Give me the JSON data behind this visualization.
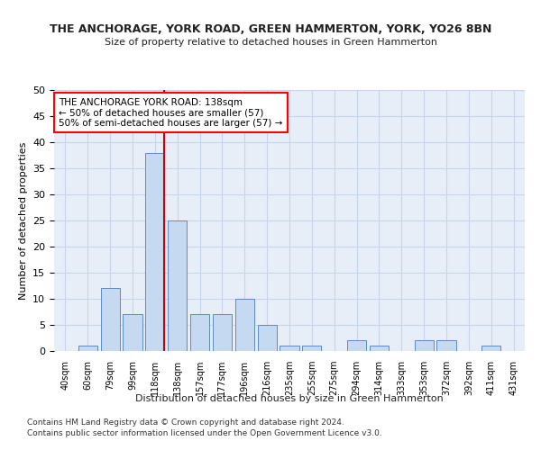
{
  "title": "THE ANCHORAGE, YORK ROAD, GREEN HAMMERTON, YORK, YO26 8BN",
  "subtitle": "Size of property relative to detached houses in Green Hammerton",
  "xlabel": "Distribution of detached houses by size in Green Hammerton",
  "ylabel": "Number of detached properties",
  "footnote1": "Contains HM Land Registry data © Crown copyright and database right 2024.",
  "footnote2": "Contains public sector information licensed under the Open Government Licence v3.0.",
  "annotation_line1": "THE ANCHORAGE YORK ROAD: 138sqm",
  "annotation_line2": "← 50% of detached houses are smaller (57)",
  "annotation_line3": "50% of semi-detached houses are larger (57) →",
  "bar_color": "#c5d9f1",
  "bar_edge_color": "#5b8bc9",
  "ref_line_color": "#cc0000",
  "categories": [
    "40sqm",
    "60sqm",
    "79sqm",
    "99sqm",
    "118sqm",
    "138sqm",
    "157sqm",
    "177sqm",
    "196sqm",
    "216sqm",
    "235sqm",
    "255sqm",
    "275sqm",
    "294sqm",
    "314sqm",
    "333sqm",
    "353sqm",
    "372sqm",
    "392sqm",
    "411sqm",
    "431sqm"
  ],
  "values": [
    0,
    1,
    12,
    7,
    38,
    25,
    7,
    7,
    10,
    5,
    1,
    1,
    0,
    2,
    1,
    0,
    2,
    2,
    0,
    1,
    0
  ],
  "ylim": [
    0,
    50
  ],
  "yticks": [
    0,
    5,
    10,
    15,
    20,
    25,
    30,
    35,
    40,
    45,
    50
  ],
  "grid_color": "#c8d4e8",
  "bg_color": "#e8eef8",
  "title_fontsize": 9,
  "subtitle_fontsize": 8
}
